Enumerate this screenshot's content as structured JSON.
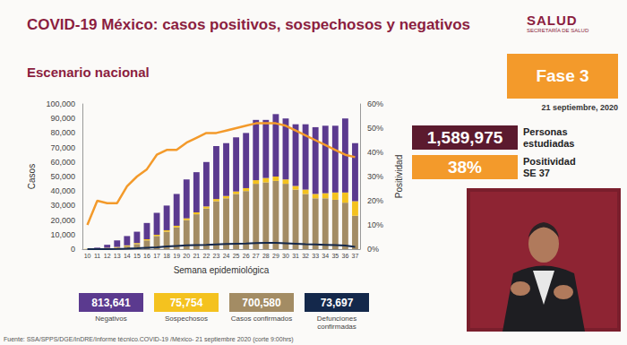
{
  "chart_data": {
    "type": "bar",
    "stacked": true,
    "grid": false,
    "xlabel": "Semana epidemiológica",
    "ylabel": "Casos",
    "y2label": "Positividad",
    "categories": [
      "10",
      "11",
      "12",
      "13",
      "14",
      "15",
      "16",
      "17",
      "18",
      "19",
      "20",
      "21",
      "22",
      "23",
      "24",
      "25",
      "26",
      "27",
      "28",
      "29",
      "30",
      "31",
      "32",
      "33",
      "34",
      "35",
      "36",
      "37"
    ],
    "ylim": [
      0,
      100000
    ],
    "yticks": [
      0,
      {
        "value": 10000,
        "label": "10,000"
      },
      {
        "value": 20000,
        "label": "20,000"
      },
      {
        "value": 30000,
        "label": "30,000"
      },
      {
        "value": 40000,
        "label": "40,000"
      },
      {
        "value": 50000,
        "label": "50,000"
      },
      {
        "value": 60000,
        "label": "60,000"
      },
      {
        "value": 70000,
        "label": "70,000"
      },
      {
        "value": 80000,
        "label": "80,000"
      },
      {
        "value": 90000,
        "label": "90,000"
      },
      {
        "value": 100000,
        "label": "100,000"
      }
    ],
    "y2lim": [
      0,
      60
    ],
    "y2ticks": [
      {
        "value": 0,
        "label": "0%"
      },
      {
        "value": 10,
        "label": "10%"
      },
      {
        "value": 20,
        "label": "20%"
      },
      {
        "value": 30,
        "label": "30%"
      },
      {
        "value": 40,
        "label": "40%"
      },
      {
        "value": 50,
        "label": "50%"
      },
      {
        "value": 60,
        "label": "60%"
      }
    ],
    "series": [
      {
        "name": "Negativos",
        "color": "#5b3a8f",
        "total": "813,641",
        "values": [
          100,
          600,
          2100,
          4500,
          6400,
          7800,
          11200,
          15100,
          17000,
          21900,
          26800,
          27700,
          30600,
          36500,
          36400,
          37300,
          38000,
          41500,
          40000,
          43000,
          42000,
          42500,
          45000,
          46000,
          46500,
          46000,
          51000,
          40000
        ]
      },
      {
        "name": "Sospechosos",
        "color": "#f4c21f",
        "total": "75,754",
        "values": [
          100,
          300,
          400,
          500,
          600,
          700,
          800,
          900,
          1000,
          1100,
          1200,
          1300,
          1400,
          1500,
          1600,
          1700,
          2000,
          2500,
          3000,
          3000,
          3000,
          2500,
          3000,
          3000,
          3500,
          5000,
          7000,
          10000
        ]
      },
      {
        "name": "Casos confirmados",
        "color": "#a38c64",
        "total": "700,580",
        "values": [
          0,
          100,
          500,
          1000,
          2000,
          3500,
          6000,
          9000,
          12000,
          15000,
          20000,
          24000,
          28000,
          33000,
          35000,
          38000,
          40000,
          45000,
          46000,
          47000,
          45000,
          41000,
          38000,
          35000,
          35000,
          34000,
          32000,
          23000
        ]
      },
      {
        "name": "Defunciones confirmadas",
        "color": "#14284b",
        "total": "73,697",
        "type": "line",
        "values": [
          0,
          0,
          20,
          100,
          300,
          600,
          1000,
          1300,
          1800,
          2200,
          2600,
          2800,
          3000,
          3300,
          3500,
          3700,
          3800,
          4200,
          4300,
          4300,
          4000,
          3700,
          3400,
          3200,
          3000,
          2800,
          2400,
          1500
        ]
      },
      {
        "color": "#f39a2b",
        "type": "line",
        "axis": "y2",
        "values": [
          10,
          20,
          19,
          19,
          26,
          30,
          33,
          39,
          41,
          41,
          44,
          46,
          48,
          48,
          49,
          50,
          51,
          52,
          52,
          52,
          51,
          49,
          47,
          45,
          43,
          41,
          39,
          38
        ]
      }
    ]
  },
  "slide": {
    "title": "COVID-19 México: casos positivos, sospechosos y negativos",
    "subtitle": "Escenario nacional",
    "logo": "SALUD",
    "logo_sub": "SECRETARÍA DE SALUD",
    "phase": "Fase 3",
    "date": "21 septiembre, 2020",
    "kpis": [
      {
        "value": "1,589,975",
        "label": "Personas estudiadas",
        "color": "#5b1a2e"
      },
      {
        "value": "38%",
        "label": "Positividad SE 37",
        "color": "#f39a2b"
      }
    ],
    "source": "Fuente: SSA/SPPS/DGE/InDRE/Informe técnico.COVID-19 /México- 21 septiembre 2020 (corte 9:00hrs)"
  }
}
